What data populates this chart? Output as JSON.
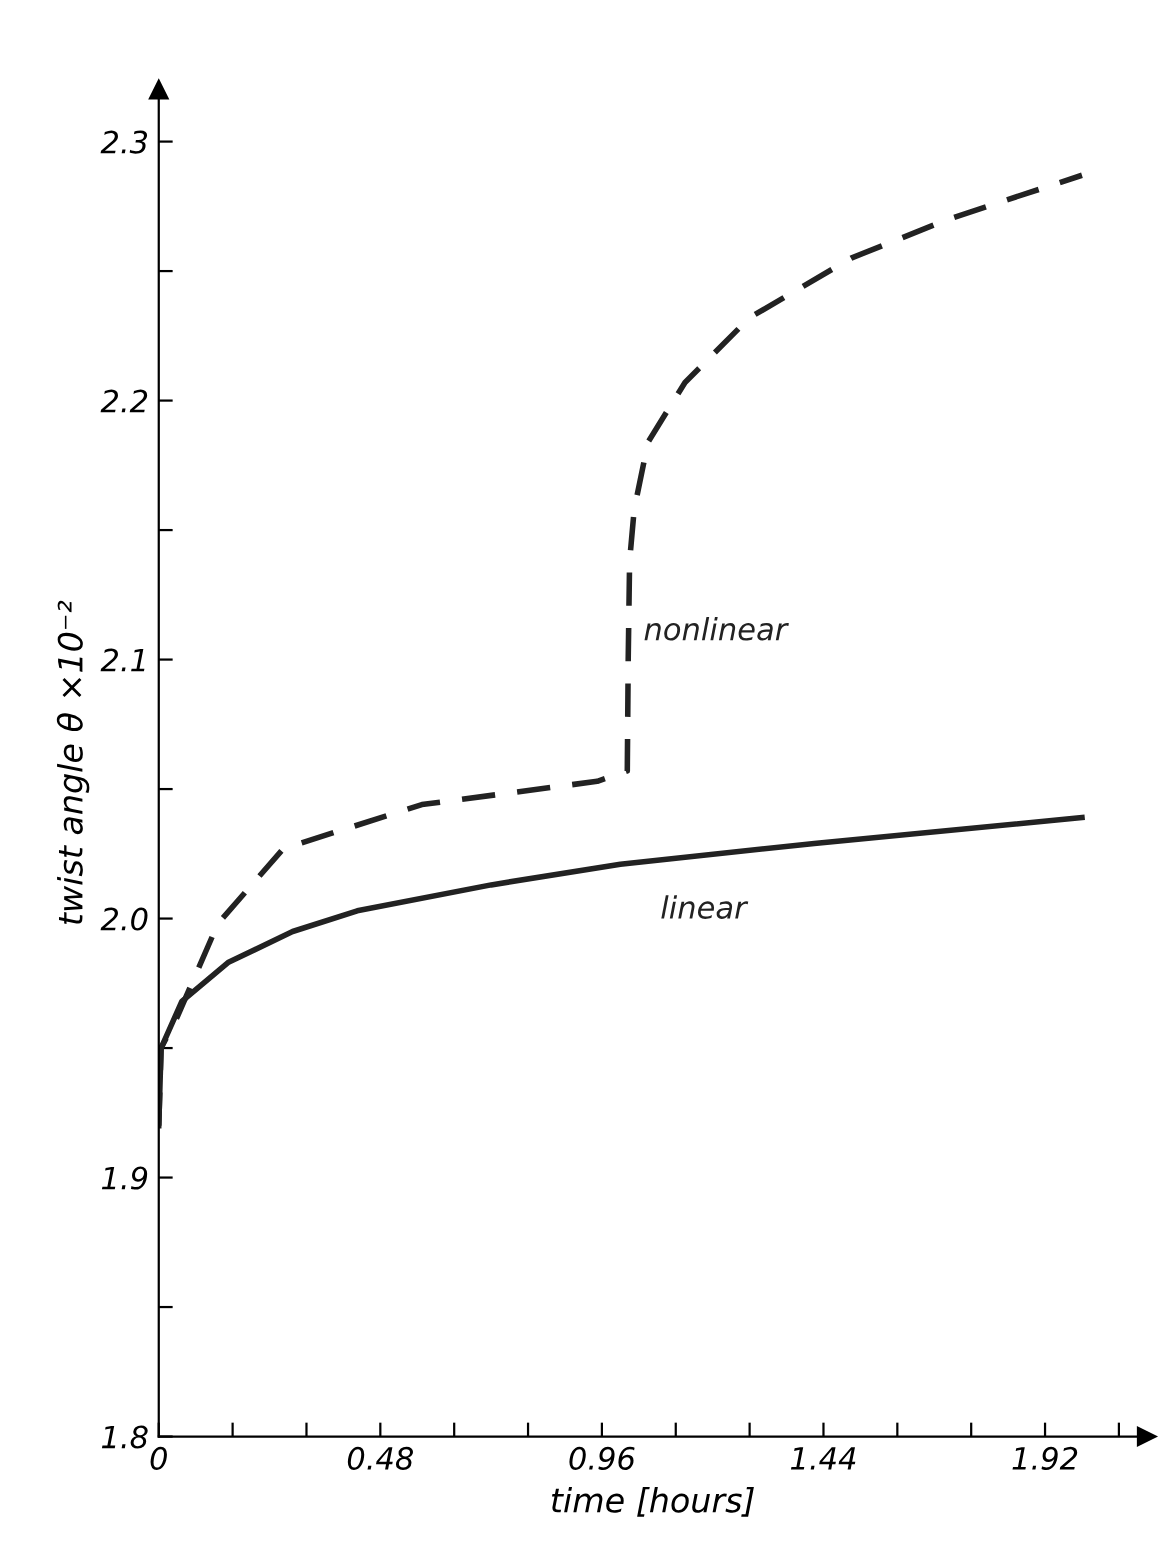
{
  "chart_data": {
    "type": "line",
    "xlabel": "time [hours]",
    "ylabel": "twist angle θ ×10⁻²",
    "xlim": [
      0,
      2.14
    ],
    "ylim": [
      1.8,
      2.32
    ],
    "xticks": [
      0,
      {
        "value": 0.16,
        "label": null
      },
      {
        "value": 0.32,
        "label": null
      },
      {
        "value": 0.48,
        "label": "0.48"
      },
      {
        "value": 0.64,
        "label": null
      },
      {
        "value": 0.8,
        "label": null
      },
      {
        "value": 0.96,
        "label": "0.96"
      },
      {
        "value": 1.12,
        "label": null
      },
      {
        "value": 1.28,
        "label": null
      },
      {
        "value": 1.44,
        "label": "1.44"
      },
      {
        "value": 1.6,
        "label": null
      },
      {
        "value": 1.76,
        "label": null
      },
      {
        "value": 1.92,
        "label": "1.92"
      },
      {
        "value": 2.08,
        "label": null
      }
    ],
    "yticks": [
      1.8,
      {
        "value": 1.85,
        "label": null
      },
      1.9,
      {
        "value": 1.95,
        "label": null
      },
      {
        "value": 2.0,
        "label": "2.0"
      },
      {
        "value": 2.05,
        "label": null
      },
      2.1,
      {
        "value": 2.15,
        "label": null
      },
      2.2,
      {
        "value": 2.25,
        "label": null
      },
      2.3
    ],
    "grid": false,
    "legend": false,
    "marker": "none",
    "series": [
      {
        "name": "nonlinear",
        "color": "#222222",
        "line_style": "dashed",
        "x": [
          0,
          0.005,
          0.04,
          0.128,
          0.27,
          0.57,
          0.95,
          1.015,
          1.017,
          1.02,
          1.03,
          1.06,
          1.14,
          1.28,
          1.5,
          1.71,
          2.0
        ],
        "values": [
          1.92,
          1.95,
          1.962,
          1.998,
          2.027,
          2.044,
          2.053,
          2.057,
          2.1,
          2.138,
          2.158,
          2.184,
          2.207,
          2.232,
          2.255,
          2.27,
          2.287
        ]
      },
      {
        "name": "linear",
        "color": "#222222",
        "line_style": "solid",
        "x": [
          0,
          0.005,
          0.05,
          0.15,
          0.29,
          0.43,
          0.72,
          1.0,
          1.42,
          2.0
        ],
        "values": [
          1.92,
          1.95,
          1.968,
          1.983,
          1.995,
          2.003,
          2.013,
          2.021,
          2.029,
          2.039
        ]
      }
    ]
  }
}
